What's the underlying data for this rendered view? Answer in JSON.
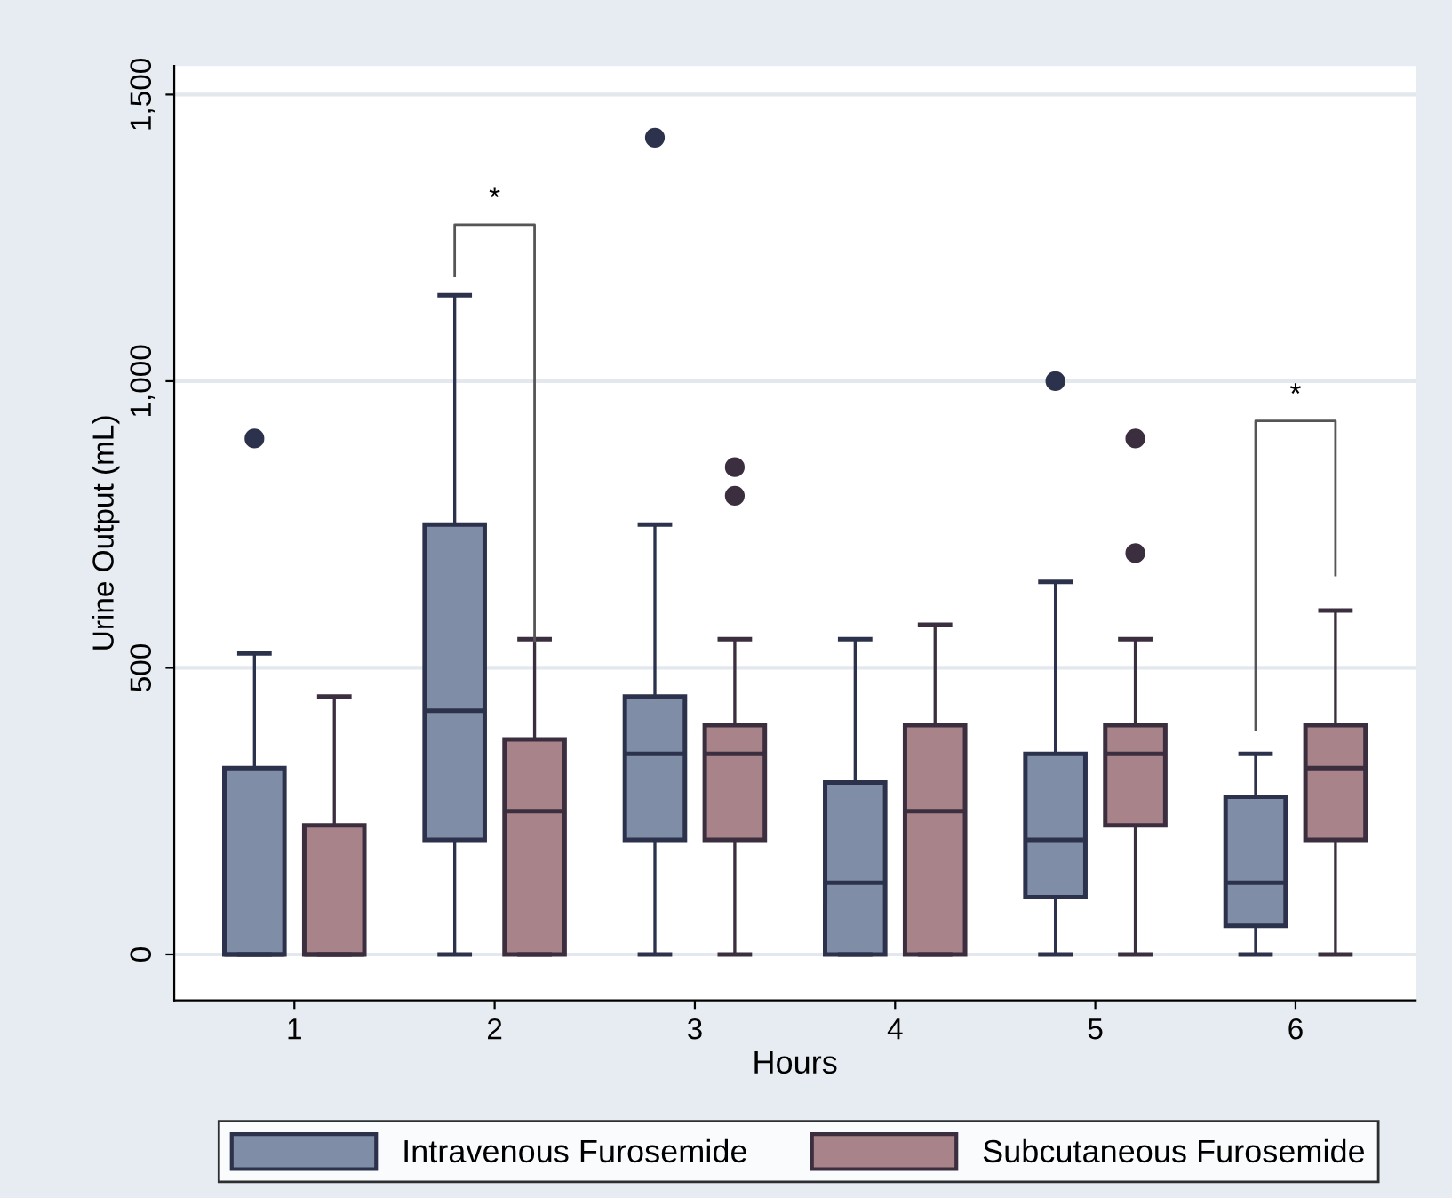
{
  "chart_data": {
    "type": "box",
    "xlabel": "Hours",
    "ylabel": "Urine Output (mL)",
    "categories": [
      "1",
      "2",
      "3",
      "4",
      "5",
      "6"
    ],
    "ylim": [
      -80,
      1550
    ],
    "yticks": [
      0,
      500,
      {
        "value": 1000,
        "label": "1,000"
      },
      {
        "value": 1500,
        "label": "1,500"
      }
    ],
    "grid": "y",
    "legend": "bottom",
    "series": [
      {
        "name": "Intravenous Furosemide",
        "color": "#7f8ea6",
        "boxes": [
          {
            "low": 0,
            "q1": 0,
            "median": 0,
            "q3": 325,
            "high": 525,
            "outliers": [
              900
            ]
          },
          {
            "low": 0,
            "q1": 200,
            "median": 425,
            "q3": 750,
            "high": 1150
          },
          {
            "low": 0,
            "q1": 200,
            "median": 350,
            "q3": 450,
            "high": 750,
            "outliers": [
              1425
            ]
          },
          {
            "low": 0,
            "q1": 0,
            "median": 125,
            "q3": 300,
            "high": 550
          },
          {
            "low": 0,
            "q1": 100,
            "median": 200,
            "q3": 350,
            "high": 650,
            "outliers": [
              1000
            ]
          },
          {
            "low": 0,
            "q1": 50,
            "median": 125,
            "q3": 275,
            "high": 350
          }
        ]
      },
      {
        "name": "Subcutaneous Furosemide",
        "color": "#a8848a",
        "boxes": [
          {
            "low": 0,
            "q1": 0,
            "median": 0,
            "q3": 225,
            "high": 450
          },
          {
            "low": 0,
            "q1": 0,
            "median": 250,
            "q3": 375,
            "high": 550
          },
          {
            "low": 0,
            "q1": 200,
            "median": 350,
            "q3": 400,
            "high": 550,
            "outliers": [
              800,
              850
            ]
          },
          {
            "low": 0,
            "q1": 0,
            "median": 250,
            "q3": 400,
            "high": 575
          },
          {
            "low": 0,
            "q1": 225,
            "median": 350,
            "q3": 400,
            "high": 550,
            "outliers": [
              700,
              900
            ]
          },
          {
            "low": 0,
            "q1": 200,
            "median": 325,
            "q3": 400,
            "high": 600
          }
        ]
      }
    ],
    "annotations": [
      "*",
      "*"
    ]
  }
}
